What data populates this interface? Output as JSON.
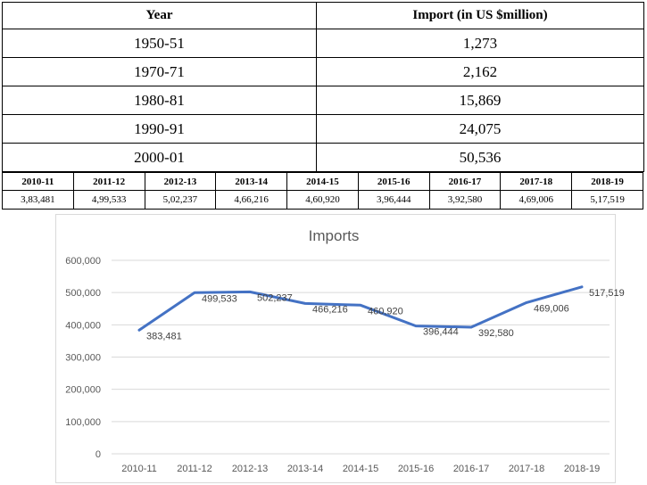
{
  "top_table": {
    "headers": [
      "Year",
      "Import (in US $million)"
    ],
    "rows": [
      [
        "1950-51",
        "1,273"
      ],
      [
        "1970-71",
        "2,162"
      ],
      [
        "1980-81",
        "15,869"
      ],
      [
        "1990-91",
        "24,075"
      ],
      [
        "2000-01",
        "50,536"
      ]
    ]
  },
  "year_table": {
    "headers": [
      "2010-11",
      "2011-12",
      "2012-13",
      "2013-14",
      "2014-15",
      "2015-16",
      "2016-17",
      "2017-18",
      "2018-19"
    ],
    "values": [
      "3,83,481",
      "4,99,533",
      "5,02,237",
      "4,66,216",
      "4,60,920",
      "3,96,444",
      "3,92,580",
      "4,69,006",
      "5,17,519"
    ]
  },
  "chart_data": {
    "type": "line",
    "title": "Imports",
    "categories": [
      "2010-11",
      "2011-12",
      "2012-13",
      "2013-14",
      "2014-15",
      "2015-16",
      "2016-17",
      "2017-18",
      "2018-19"
    ],
    "series": [
      {
        "values": [
          383481,
          499533,
          502237,
          466216,
          460920,
          396444,
          392580,
          469006,
          517519
        ]
      }
    ],
    "data_labels": [
      "383,481",
      "499,533",
      "502,237",
      "466,216",
      "460,920",
      "396,444",
      "392,580",
      "469,006",
      "517,519"
    ],
    "y_ticks": [
      "0",
      "100,000",
      "200,000",
      "300,000",
      "400,000",
      "500,000",
      "600,000"
    ],
    "ylim": [
      0,
      600000
    ],
    "grid": true,
    "legend": "none",
    "line_color": "#4472c4"
  }
}
